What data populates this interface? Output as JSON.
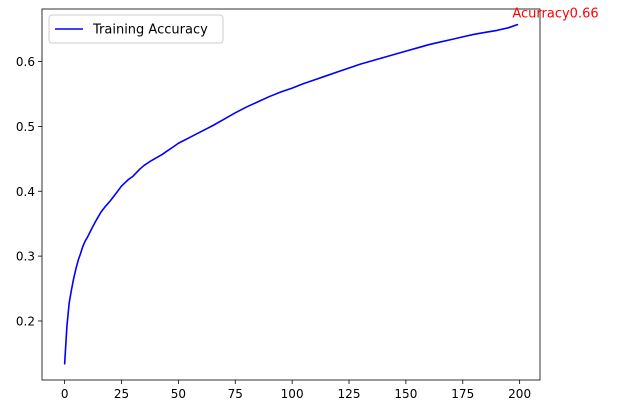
{
  "chart_data": {
    "type": "line",
    "title": "",
    "xlabel": "",
    "ylabel": "",
    "xlim": [
      -9.95,
      208.95
    ],
    "ylim": [
      0.109,
      0.681
    ],
    "xticks": [
      0,
      25,
      50,
      75,
      100,
      125,
      150,
      175,
      200
    ],
    "yticks": [
      0.2,
      0.3,
      0.4,
      0.5,
      0.6
    ],
    "xtick_labels": [
      "0",
      "25",
      "50",
      "75",
      "100",
      "125",
      "150",
      "175",
      "200"
    ],
    "ytick_labels": [
      "0.2",
      "0.3",
      "0.4",
      "0.5",
      "0.6"
    ],
    "grid": false,
    "legend_placement": "top-left",
    "series": [
      {
        "name": "Training Accuracy",
        "color": "#0000ff",
        "x": [
          0,
          1,
          2,
          3,
          4,
          5,
          6,
          7,
          8,
          9,
          10,
          12,
          14,
          16,
          18,
          20,
          22,
          25,
          28,
          30,
          33,
          35,
          38,
          40,
          43,
          45,
          48,
          50,
          55,
          60,
          65,
          70,
          75,
          80,
          85,
          90,
          95,
          100,
          105,
          110,
          115,
          120,
          125,
          130,
          135,
          140,
          145,
          150,
          155,
          160,
          165,
          170,
          175,
          180,
          185,
          190,
          195,
          199
        ],
        "y": [
          0.134,
          0.192,
          0.228,
          0.248,
          0.266,
          0.281,
          0.294,
          0.304,
          0.315,
          0.323,
          0.329,
          0.343,
          0.356,
          0.368,
          0.377,
          0.385,
          0.394,
          0.408,
          0.418,
          0.423,
          0.434,
          0.44,
          0.447,
          0.451,
          0.457,
          0.462,
          0.469,
          0.474,
          0.483,
          0.492,
          0.501,
          0.511,
          0.521,
          0.53,
          0.538,
          0.546,
          0.553,
          0.559,
          0.566,
          0.572,
          0.578,
          0.584,
          0.59,
          0.596,
          0.601,
          0.606,
          0.611,
          0.616,
          0.621,
          0.626,
          0.63,
          0.634,
          0.638,
          0.642,
          0.645,
          0.648,
          0.652,
          0.657
        ]
      }
    ],
    "annotation": {
      "text": "Acurracy0.66",
      "x": 199,
      "y": 0.657,
      "color": "#ff0000"
    }
  }
}
